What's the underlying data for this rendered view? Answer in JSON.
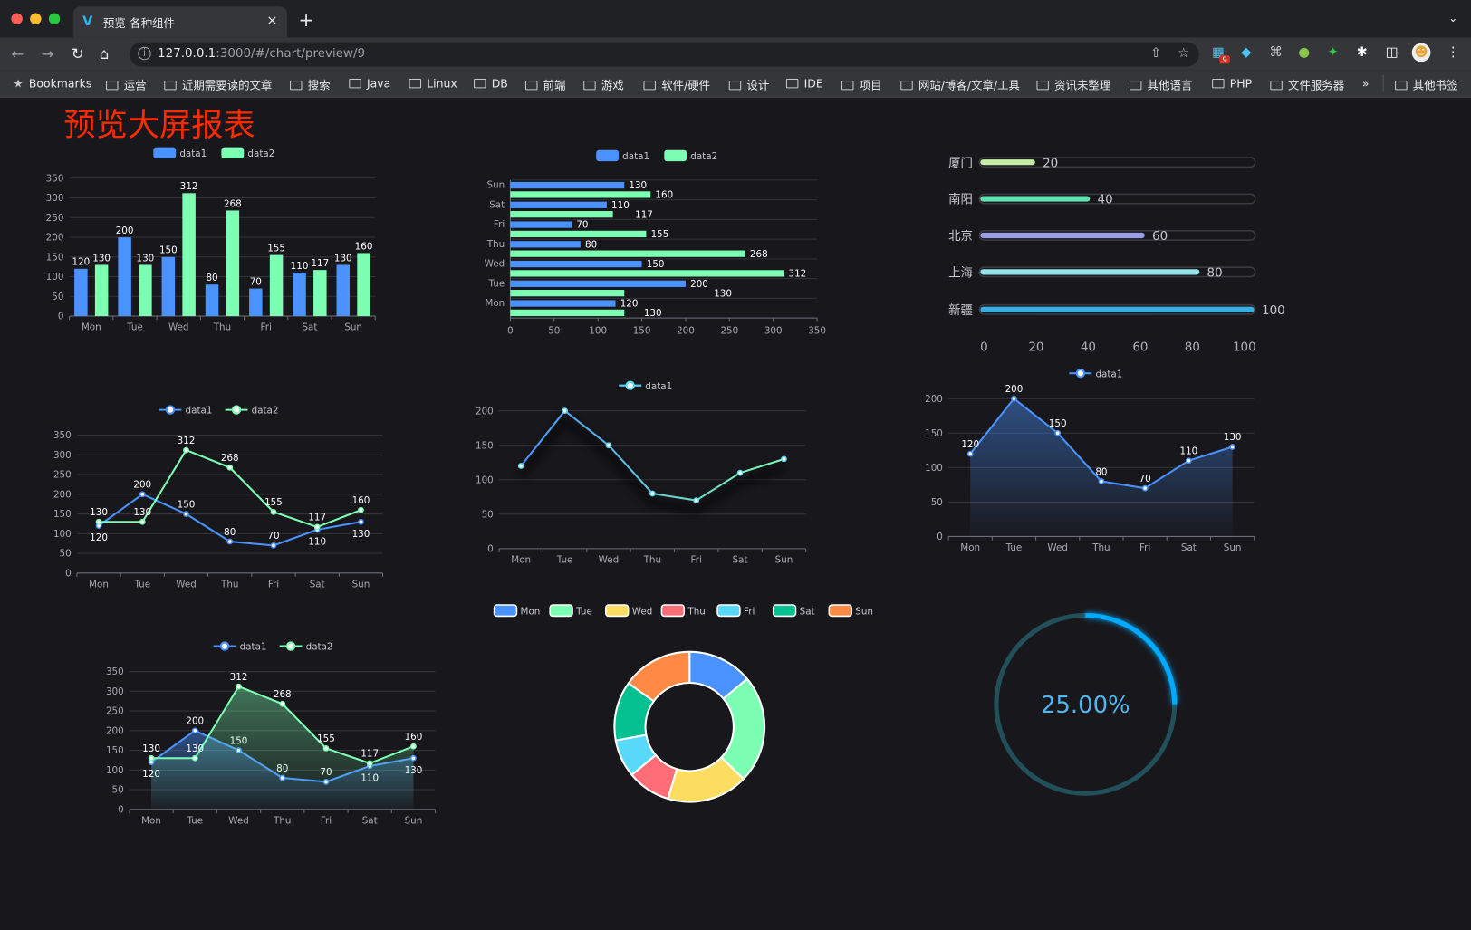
{
  "browser": {
    "tab_title": "预览-各种组件",
    "tab_close": "×",
    "new_tab": "+",
    "url_host": "127.0.0.1",
    "url_rest": ":3000/#/chart/preview/9",
    "extension_badge": "9",
    "bookmarks": [
      "Bookmarks",
      "运营",
      "近期需要读的文章",
      "搜索",
      "Java",
      "Linux",
      "DB",
      "前端",
      "游戏",
      "软件/硬件",
      "设计",
      "IDE",
      "项目",
      "网站/博客/文章/工具",
      "资讯未整理",
      "其他语言",
      "PHP",
      "文件服务器"
    ],
    "more": "»",
    "other_bookmarks": "其他书签"
  },
  "page": {
    "title": "预览大屏报表",
    "title_color": "#ff2a00"
  },
  "chart_data": [
    {
      "type": "bar",
      "legend": "top",
      "grid": true,
      "categories": [
        "Mon",
        "Tue",
        "Wed",
        "Thu",
        "Fri",
        "Sat",
        "Sun"
      ],
      "ylim": [
        0,
        350
      ],
      "yticks": [
        0,
        50,
        100,
        150,
        200,
        250,
        300,
        350
      ],
      "series": [
        {
          "name": "data1",
          "values": [
            120,
            200,
            150,
            80,
            70,
            110,
            130
          ],
          "color": "#4992ff"
        },
        {
          "name": "data2",
          "values": [
            130,
            130,
            312,
            268,
            155,
            117,
            160
          ],
          "color": "#7cffb2"
        }
      ]
    },
    {
      "type": "bar",
      "orientation": "horizontal",
      "legend": "top",
      "grid": true,
      "categories": [
        "Mon",
        "Tue",
        "Wed",
        "Thu",
        "Fri",
        "Sat",
        "Sun"
      ],
      "xlim": [
        0,
        350
      ],
      "xticks": [
        0,
        50,
        100,
        150,
        200,
        250,
        300,
        350
      ],
      "series": [
        {
          "name": "data1",
          "values": [
            120,
            200,
            150,
            80,
            70,
            110,
            130
          ],
          "color": "#4992ff"
        },
        {
          "name": "data2",
          "values": [
            130,
            130,
            312,
            268,
            155,
            117,
            160
          ],
          "color": "#7cffb2"
        }
      ]
    },
    {
      "type": "bar",
      "orientation": "horizontal",
      "style": "progress",
      "categories": [
        "厦门",
        "南阳",
        "北京",
        "上海",
        "新疆"
      ],
      "values": [
        20,
        40,
        60,
        80,
        100
      ],
      "colors": [
        "#c5eca7",
        "#5ee0b0",
        "#9a9ee8",
        "#93e3ea",
        "#3aaee2"
      ],
      "xlim": [
        0,
        100
      ],
      "xticks": [
        0,
        20,
        40,
        60,
        80,
        100
      ]
    },
    {
      "type": "line",
      "legend": "top",
      "grid": true,
      "categories": [
        "Mon",
        "Tue",
        "Wed",
        "Thu",
        "Fri",
        "Sat",
        "Sun"
      ],
      "ylim": [
        0,
        350
      ],
      "yticks": [
        0,
        50,
        100,
        150,
        200,
        250,
        300,
        350
      ],
      "series": [
        {
          "name": "data1",
          "values": [
            120,
            200,
            150,
            80,
            70,
            110,
            130
          ],
          "color": "#4992ff"
        },
        {
          "name": "data2",
          "values": [
            130,
            130,
            312,
            268,
            155,
            117,
            160
          ],
          "color": "#7cffb2"
        }
      ]
    },
    {
      "type": "line",
      "legend": "top",
      "grid": true,
      "categories": [
        "Mon",
        "Tue",
        "Wed",
        "Thu",
        "Fri",
        "Sat",
        "Sun"
      ],
      "ylim": [
        0,
        200
      ],
      "yticks": [
        0,
        50,
        100,
        150,
        200
      ],
      "series": [
        {
          "name": "data1",
          "values": [
            120,
            200,
            150,
            80,
            70,
            110,
            130
          ],
          "color": "#58d9f9"
        }
      ]
    },
    {
      "type": "area",
      "legend": "top",
      "grid": true,
      "categories": [
        "Mon",
        "Tue",
        "Wed",
        "Thu",
        "Fri",
        "Sat",
        "Sun"
      ],
      "ylim": [
        0,
        200
      ],
      "yticks": [
        0,
        50,
        100,
        150,
        200
      ],
      "series": [
        {
          "name": "data1",
          "values": [
            120,
            200,
            150,
            80,
            70,
            110,
            130
          ],
          "color": "#4992ff"
        }
      ]
    },
    {
      "type": "area",
      "legend": "top",
      "grid": true,
      "categories": [
        "Mon",
        "Tue",
        "Wed",
        "Thu",
        "Fri",
        "Sat",
        "Sun"
      ],
      "ylim": [
        0,
        350
      ],
      "yticks": [
        0,
        50,
        100,
        150,
        200,
        250,
        300,
        350
      ],
      "series": [
        {
          "name": "data1",
          "values": [
            120,
            200,
            150,
            80,
            70,
            110,
            130
          ],
          "color": "#4992ff"
        },
        {
          "name": "data2",
          "values": [
            130,
            130,
            312,
            268,
            155,
            117,
            160
          ],
          "color": "#7cffb2"
        }
      ]
    },
    {
      "type": "pie",
      "style": "donut",
      "legend": "top",
      "categories": [
        "Mon",
        "Tue",
        "Wed",
        "Thu",
        "Fri",
        "Sat",
        "Sun"
      ],
      "values": [
        120,
        200,
        150,
        80,
        70,
        110,
        130
      ],
      "colors": [
        "#4992ff",
        "#7cffb2",
        "#fddd60",
        "#ff6e76",
        "#58d9f9",
        "#05c091",
        "#ff8a45"
      ]
    },
    {
      "type": "gauge",
      "style": "ring",
      "value": 25,
      "max": 100,
      "label": "25.00%",
      "color": "#00aaff",
      "track_color": "#22505a"
    }
  ]
}
